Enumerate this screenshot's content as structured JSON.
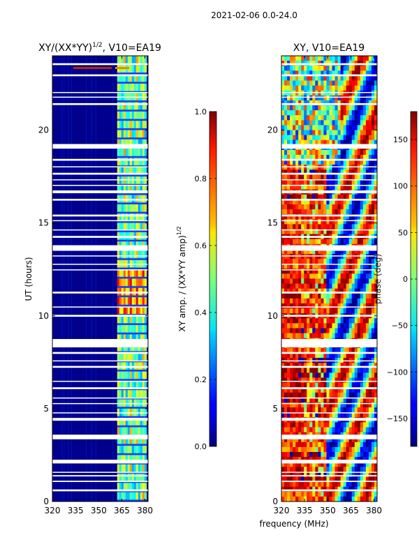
{
  "figure": {
    "suptitle": "2021-02-06 0.0-24.0",
    "shared_xlabel": "frequency (MHz)"
  },
  "chart_data": [
    {
      "type": "heatmap",
      "title": "XY/(XX*YY)",
      "title_exponent": "1/2",
      "title_suffix": ", V10=EA19",
      "xlabel": "",
      "ylabel": "UT (hours)",
      "xlim": [
        320,
        382
      ],
      "ylim": [
        0,
        24
      ],
      "xticks": [
        320,
        335,
        350,
        365,
        380
      ],
      "yticks": [
        0,
        5,
        10,
        15,
        20
      ],
      "colormap": "jet",
      "colorbar": {
        "label": "XY amp. / (XX*YY amp)",
        "label_exponent": "1/2",
        "range": [
          0.0,
          1.0
        ],
        "ticks": [
          0.0,
          0.2,
          0.4,
          0.6,
          0.8,
          1.0
        ],
        "tick_labels": [
          "0.0",
          "0.2",
          "0.4",
          "0.6",
          "0.8",
          "1.0"
        ]
      },
      "bright_band_MHz": [
        362,
        381
      ]
    },
    {
      "type": "heatmap",
      "title": "XY, V10=EA19",
      "xlabel": "frequency (MHz)",
      "ylabel": "",
      "xlim": [
        320,
        382
      ],
      "ylim": [
        0,
        24
      ],
      "xticks": [
        320,
        335,
        350,
        365,
        380
      ],
      "yticks": [
        0,
        5,
        10,
        15,
        20
      ],
      "colormap": "jet",
      "colorbar": {
        "label": "phase (deg)",
        "range": [
          -180,
          180
        ],
        "ticks": [
          -150,
          -100,
          -50,
          0,
          50,
          100,
          150
        ],
        "tick_labels": [
          "−150",
          "−100",
          "−50",
          "0",
          "50",
          "100",
          "150"
        ]
      }
    }
  ],
  "flagged_ut_hours": [
    [
      0.55,
      0.65
    ],
    [
      1.05,
      1.12
    ],
    [
      1.35,
      1.42
    ],
    [
      1.55,
      1.6
    ],
    [
      2.05,
      2.25
    ],
    [
      3.35,
      3.6
    ],
    [
      4.35,
      4.5
    ],
    [
      4.75,
      4.8
    ],
    [
      5.25,
      5.3
    ],
    [
      5.55,
      5.6
    ],
    [
      6.05,
      6.15
    ],
    [
      6.45,
      6.5
    ],
    [
      7.2,
      7.3
    ],
    [
      7.55,
      7.6
    ],
    [
      7.95,
      8.05
    ],
    [
      8.3,
      8.75
    ],
    [
      9.95,
      10.05
    ],
    [
      10.45,
      10.5
    ],
    [
      11.2,
      11.3
    ],
    [
      12.45,
      12.5
    ],
    [
      12.75,
      12.8
    ],
    [
      13.2,
      13.25
    ],
    [
      13.5,
      13.8
    ],
    [
      14.2,
      14.3
    ],
    [
      14.6,
      14.65
    ],
    [
      15.1,
      15.15
    ],
    [
      15.35,
      15.45
    ],
    [
      16.2,
      16.3
    ],
    [
      16.6,
      16.75
    ],
    [
      17.0,
      17.05
    ],
    [
      17.3,
      17.35
    ],
    [
      17.6,
      17.7
    ],
    [
      18.0,
      18.05
    ],
    [
      18.35,
      18.45
    ],
    [
      19.0,
      19.25
    ],
    [
      21.35,
      21.45
    ],
    [
      21.75,
      21.8
    ],
    [
      22.0,
      22.05
    ],
    [
      22.9,
      23.0
    ],
    [
      23.5,
      23.6
    ]
  ]
}
